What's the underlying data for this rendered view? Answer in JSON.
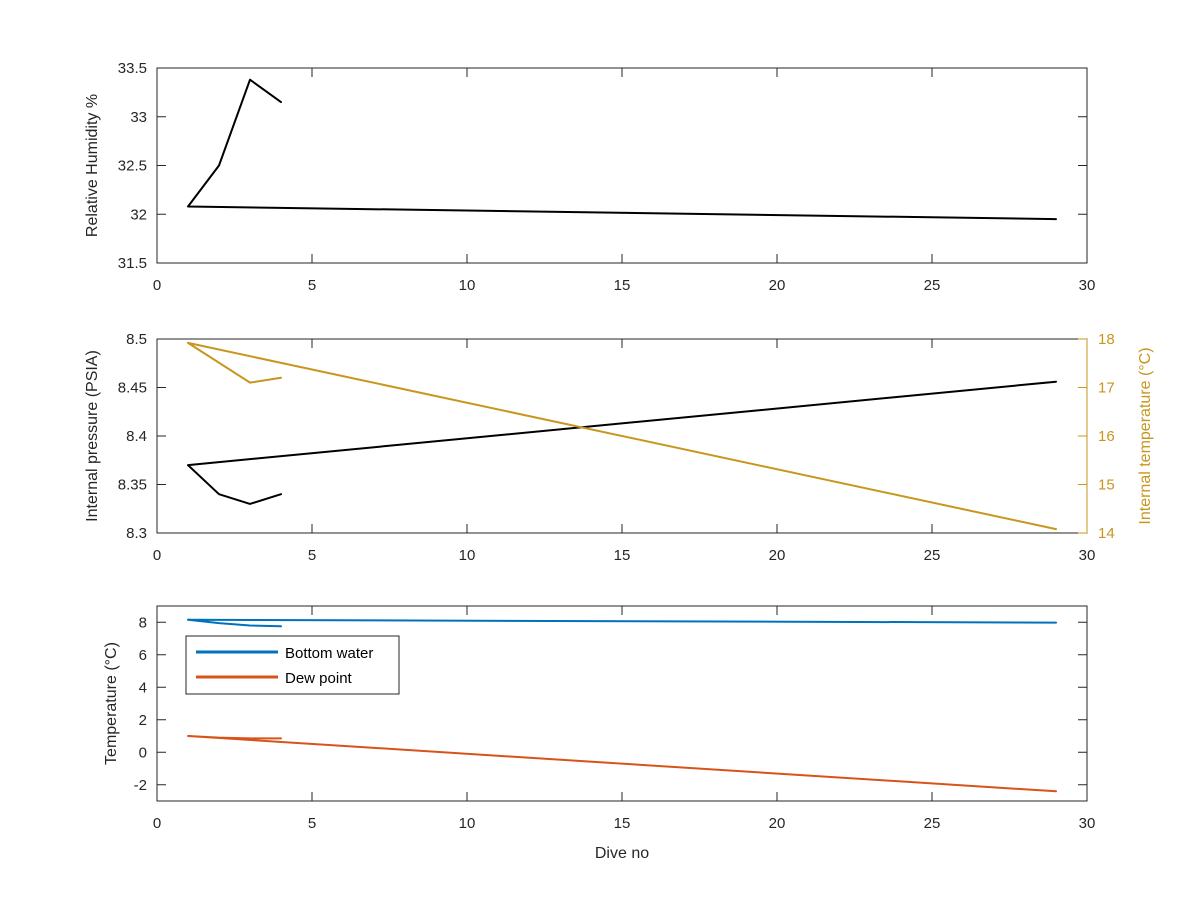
{
  "colors": {
    "black": "#000000",
    "axis": "#262626",
    "temperature_axis": "#c8961e",
    "temperature_line": "#c8961e",
    "bottom_water": "#0072bd",
    "dew_point": "#d95319"
  },
  "chart_data": [
    {
      "type": "line",
      "xlim": [
        0,
        30
      ],
      "ylim": [
        31.5,
        33.5
      ],
      "xticks": [
        "0",
        "5",
        "10",
        "15",
        "20",
        "25",
        "30"
      ],
      "yticks": [
        "31.5",
        "32",
        "32.5",
        "33",
        "33.5"
      ],
      "xlabel": "",
      "ylabel": "Relative Humidity %",
      "grid": false,
      "series": [
        {
          "color": "#000000",
          "x": [
            4,
            3,
            2,
            1,
            29
          ],
          "y": [
            33.15,
            33.38,
            32.5,
            32.08,
            31.95
          ]
        }
      ]
    },
    {
      "type": "line",
      "xlim": [
        0,
        30
      ],
      "ylim": [
        8.3,
        8.5
      ],
      "y2lim": [
        14,
        18
      ],
      "xticks": [
        "0",
        "5",
        "10",
        "15",
        "20",
        "25",
        "30"
      ],
      "yticks": [
        "8.3",
        "8.35",
        "8.4",
        "8.45",
        "8.5"
      ],
      "y2ticks": [
        "14",
        "15",
        "16",
        "17",
        "18"
      ],
      "xlabel": "",
      "ylabel": "Internal pressure (PSIA)",
      "y2label": "Internal temperature (°C)",
      "grid": false,
      "series": [
        {
          "axis": "left",
          "color": "#000000",
          "x": [
            4,
            3,
            2,
            1,
            29
          ],
          "y": [
            8.34,
            8.33,
            8.34,
            8.37,
            8.456
          ]
        },
        {
          "axis": "right",
          "color": "#c8961e",
          "x": [
            4,
            3,
            1,
            29
          ],
          "y": [
            17.2,
            17.1,
            17.92,
            14.08
          ]
        }
      ]
    },
    {
      "type": "line",
      "xlim": [
        0,
        30
      ],
      "ylim": [
        -3,
        9
      ],
      "xticks": [
        "0",
        "5",
        "10",
        "15",
        "20",
        "25",
        "30"
      ],
      "yticks": [
        "-2",
        "0",
        "2",
        "4",
        "6",
        "8"
      ],
      "xlabel": "Dive no",
      "ylabel": "Temperature (°C)",
      "grid": false,
      "legend": "top-left",
      "series": [
        {
          "name": "Bottom water",
          "color": "#0072bd",
          "x": [
            4,
            3,
            2,
            1,
            29
          ],
          "y": [
            7.75,
            7.8,
            7.95,
            8.15,
            7.98
          ]
        },
        {
          "name": "Dew point",
          "color": "#d95319",
          "x": [
            4,
            3,
            2,
            1,
            29
          ],
          "y": [
            0.85,
            0.85,
            0.9,
            1.0,
            -2.4
          ]
        }
      ]
    }
  ]
}
